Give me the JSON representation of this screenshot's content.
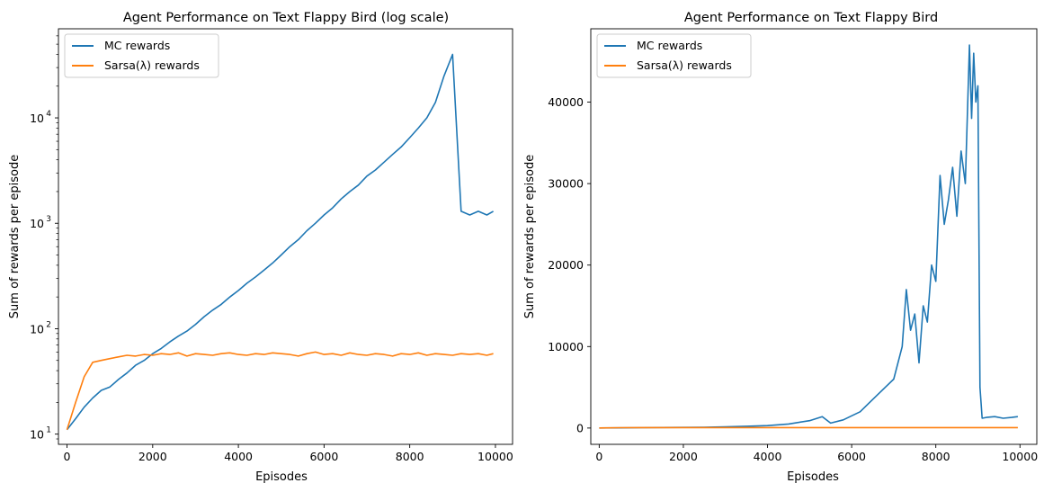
{
  "chart_data": [
    {
      "type": "line",
      "title": "Agent Performance on Text Flappy Bird (log scale)",
      "xlabel": "Episodes",
      "ylabel": "Sum of rewards per episode",
      "xlim": [
        -200,
        10400
      ],
      "ylim": [
        8,
        70000
      ],
      "yscale": "log",
      "xticks": [
        0,
        2000,
        4000,
        6000,
        8000,
        10000
      ],
      "xtick_labels": [
        "0",
        "2000",
        "4000",
        "6000",
        "8000",
        "10000"
      ],
      "yticks": [
        10,
        100,
        1000,
        10000
      ],
      "ytick_labels": [
        "10",
        "10",
        "10",
        "10"
      ],
      "ytick_exponents": [
        "1",
        "2",
        "3",
        "4"
      ],
      "legend_position": "upper-left",
      "series": [
        {
          "name": "MC rewards",
          "color": "#1f77b4",
          "x": [
            0,
            200,
            400,
            600,
            800,
            1000,
            1200,
            1400,
            1600,
            1800,
            2000,
            2200,
            2400,
            2600,
            2800,
            3000,
            3200,
            3400,
            3600,
            3800,
            4000,
            4200,
            4400,
            4600,
            4800,
            5000,
            5200,
            5400,
            5600,
            5800,
            6000,
            6200,
            6400,
            6600,
            6800,
            7000,
            7200,
            7400,
            7600,
            7800,
            8000,
            8200,
            8400,
            8600,
            8800,
            9000,
            9200,
            9400,
            9600,
            9800,
            9950
          ],
          "y": [
            11,
            14,
            18,
            22,
            26,
            28,
            33,
            38,
            45,
            50,
            58,
            65,
            75,
            85,
            95,
            110,
            130,
            150,
            170,
            200,
            230,
            270,
            310,
            360,
            420,
            500,
            600,
            700,
            850,
            1000,
            1200,
            1400,
            1700,
            2000,
            2300,
            2800,
            3200,
            3800,
            4500,
            5300,
            6500,
            8000,
            10000,
            14000,
            25000,
            40000,
            1300,
            1200,
            1300,
            1200,
            1300
          ]
        },
        {
          "name": "Sarsa(λ) rewards",
          "color": "#ff7f0e",
          "x": [
            0,
            200,
            400,
            600,
            800,
            1000,
            1200,
            1400,
            1600,
            1800,
            2000,
            2200,
            2400,
            2600,
            2800,
            3000,
            3200,
            3400,
            3600,
            3800,
            4000,
            4200,
            4400,
            4600,
            4800,
            5000,
            5200,
            5400,
            5600,
            5800,
            6000,
            6200,
            6400,
            6600,
            6800,
            7000,
            7200,
            7400,
            7600,
            7800,
            8000,
            8200,
            8400,
            8600,
            8800,
            9000,
            9200,
            9400,
            9600,
            9800,
            9950
          ],
          "y": [
            11,
            20,
            35,
            48,
            50,
            52,
            54,
            56,
            55,
            57,
            56,
            58,
            57,
            59,
            55,
            58,
            57,
            56,
            58,
            59,
            57,
            56,
            58,
            57,
            59,
            58,
            57,
            55,
            58,
            60,
            57,
            58,
            56,
            59,
            57,
            56,
            58,
            57,
            55,
            58,
            57,
            59,
            56,
            58,
            57,
            56,
            58,
            57,
            58,
            56,
            58
          ]
        }
      ]
    },
    {
      "type": "line",
      "title": "Agent Performance on Text Flappy Bird",
      "xlabel": "Episodes",
      "ylabel": "Sum of rewards per episode",
      "xlim": [
        -200,
        10400
      ],
      "ylim": [
        -2000,
        49000
      ],
      "yscale": "linear",
      "xticks": [
        0,
        2000,
        4000,
        6000,
        8000,
        10000
      ],
      "xtick_labels": [
        "0",
        "2000",
        "4000",
        "6000",
        "8000",
        "10000"
      ],
      "yticks": [
        0,
        10000,
        20000,
        30000,
        40000
      ],
      "ytick_labels": [
        "0",
        "10000",
        "20000",
        "30000",
        "40000"
      ],
      "legend_position": "upper-left",
      "series": [
        {
          "name": "MC rewards",
          "color": "#1f77b4",
          "x": [
            0,
            500,
            1000,
            1500,
            2000,
            2500,
            3000,
            3500,
            4000,
            4500,
            5000,
            5300,
            5500,
            5800,
            6000,
            6200,
            6400,
            6600,
            6800,
            7000,
            7200,
            7300,
            7400,
            7500,
            7600,
            7700,
            7800,
            7900,
            8000,
            8100,
            8200,
            8300,
            8400,
            8500,
            8600,
            8700,
            8800,
            8850,
            8900,
            8950,
            9000,
            9050,
            9100,
            9200,
            9400,
            9600,
            9800,
            9950
          ],
          "y": [
            11,
            25,
            40,
            60,
            70,
            100,
            150,
            220,
            300,
            500,
            900,
            1400,
            600,
            1000,
            1500,
            2000,
            3000,
            4000,
            5000,
            6000,
            10000,
            17000,
            12000,
            14000,
            8000,
            15000,
            13000,
            20000,
            18000,
            31000,
            25000,
            28000,
            32000,
            26000,
            34000,
            30000,
            47000,
            38000,
            46000,
            40000,
            42000,
            5000,
            1200,
            1300,
            1400,
            1200,
            1300,
            1400
          ]
        },
        {
          "name": "Sarsa(λ) rewards",
          "color": "#ff7f0e",
          "x": [
            0,
            500,
            1000,
            2000,
            3000,
            4000,
            5000,
            6000,
            7000,
            8000,
            9000,
            9950
          ],
          "y": [
            11,
            45,
            52,
            56,
            57,
            58,
            57,
            58,
            57,
            58,
            57,
            58
          ]
        }
      ]
    }
  ]
}
